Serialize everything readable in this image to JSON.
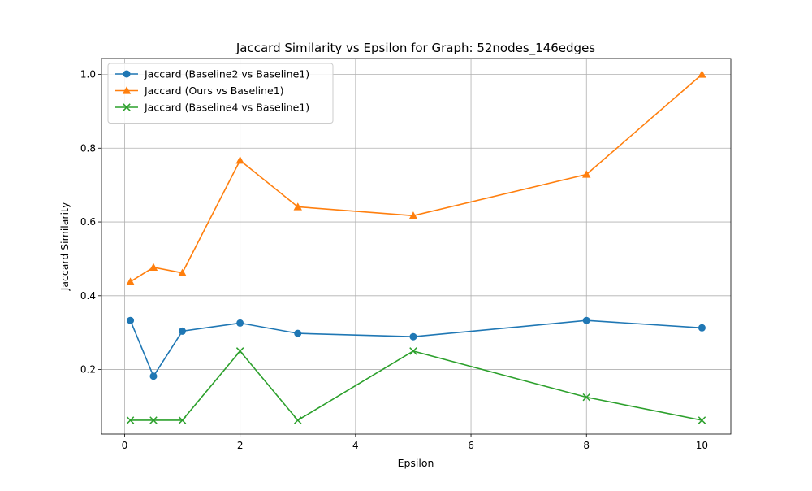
{
  "chart_data": {
    "type": "line",
    "title": "Jaccard Similarity vs Epsilon for Graph: 52nodes_146edges",
    "xlabel": "Epsilon",
    "ylabel": "Jaccard Similarity",
    "xlim": [
      -0.4,
      10.5
    ],
    "ylim": [
      0.025,
      1.043
    ],
    "xticks": [
      0,
      2,
      4,
      6,
      8,
      10
    ],
    "yticks": [
      0.2,
      0.4,
      0.6,
      0.8,
      1.0
    ],
    "grid": true,
    "legend_position": "upper-left",
    "x": [
      0.1,
      0.5,
      1,
      2,
      3,
      5,
      8,
      10
    ],
    "series": [
      {
        "name": "Jaccard (Baseline2 vs Baseline1)",
        "color": "#1f77b4",
        "marker": "circle",
        "values": [
          0.333,
          0.182,
          0.304,
          0.326,
          0.298,
          0.289,
          0.333,
          0.313
        ]
      },
      {
        "name": "Jaccard (Ours vs Baseline1)",
        "color": "#ff7f0e",
        "marker": "triangle",
        "values": [
          0.438,
          0.477,
          0.462,
          0.767,
          0.641,
          0.617,
          0.729,
          1.0
        ]
      },
      {
        "name": "Jaccard (Baseline4 vs Baseline1)",
        "color": "#2ca02c",
        "marker": "x",
        "values": [
          0.0625,
          0.0625,
          0.0625,
          0.25,
          0.0625,
          0.25,
          0.125,
          0.0625
        ]
      }
    ]
  }
}
